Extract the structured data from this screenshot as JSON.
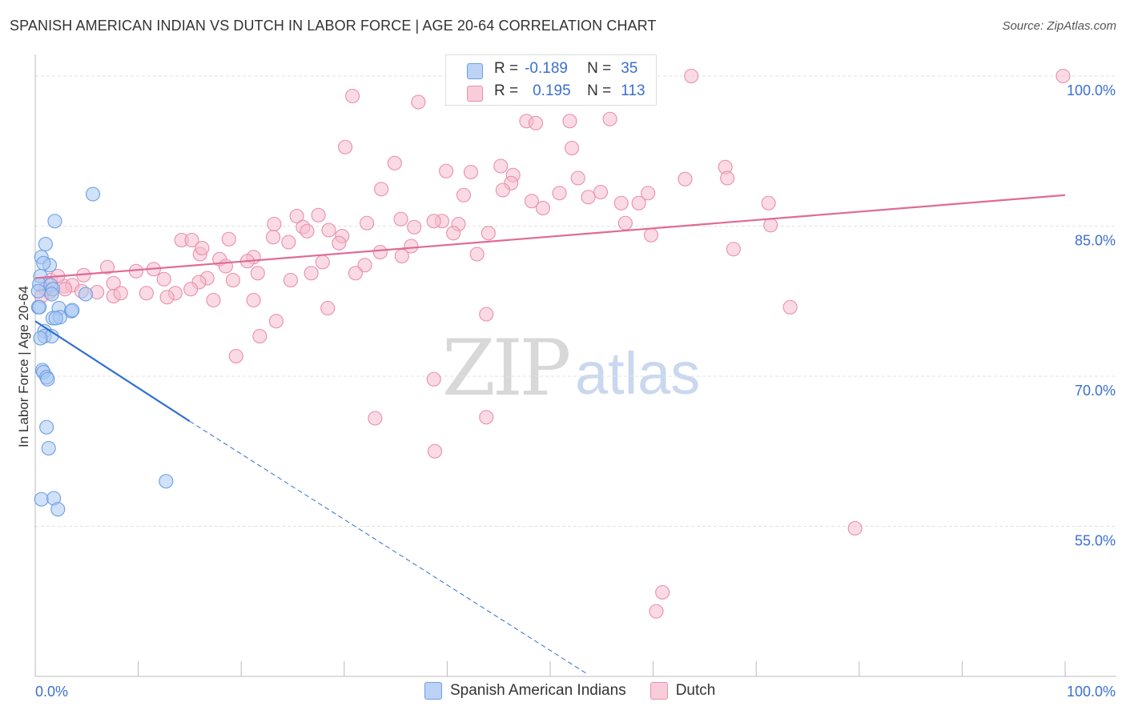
{
  "title": "SPANISH AMERICAN INDIAN VS DUTCH IN LABOR FORCE | AGE 20-64 CORRELATION CHART",
  "source": "Source: ZipAtlas.com",
  "watermark": {
    "zip": "ZIP",
    "atlas": "atlas"
  },
  "legend_top": {
    "rows": [
      {
        "r_label": "R =",
        "r_value": "-0.189",
        "n_label": "N =",
        "n_value": "35"
      },
      {
        "r_label": "R =",
        "r_value": "0.195",
        "n_label": "N =",
        "n_value": "113"
      }
    ]
  },
  "colors": {
    "blue_fill": "#a9c8f2",
    "blue_stroke": "#6a9ee4",
    "blue_line": "#2f6fd1",
    "pink_fill": "#f6bccd",
    "pink_stroke": "#e88faa",
    "pink_line": "#e06a96",
    "tick_label": "#3b6fd0",
    "grid": "#e2e2e2"
  },
  "chart_data": {
    "type": "scatter",
    "title": "SPANISH AMERICAN INDIAN VS DUTCH IN LABOR FORCE | AGE 20-64 CORRELATION CHART",
    "xlabel": "",
    "ylabel": "In Labor Force | Age 20-64",
    "xlim": [
      0,
      100
    ],
    "ylim": [
      40,
      102
    ],
    "x_tick_labels": [
      {
        "value": 0,
        "label": "0.0%"
      },
      {
        "value": 100,
        "label": "100.0%"
      }
    ],
    "y_ticks": [
      {
        "value": 100,
        "label": "100.0%"
      },
      {
        "value": 85,
        "label": "85.0%"
      },
      {
        "value": 70,
        "label": "70.0%"
      },
      {
        "value": 55,
        "label": "55.0%"
      }
    ],
    "legend": {
      "position": "bottom-center"
    },
    "series": [
      {
        "name": "Spanish American Indians",
        "color": "blue",
        "trend": {
          "x0": 0,
          "y0": 75.5,
          "x1": 15,
          "y1": 65.5,
          "dash_to_x": 53.5,
          "dash_to_y": 40.3
        },
        "points": [
          [
            5.6,
            88.2
          ],
          [
            1.9,
            85.5
          ],
          [
            1.0,
            83.2
          ],
          [
            0.6,
            81.9
          ],
          [
            1.4,
            81.1
          ],
          [
            0.8,
            81.3
          ],
          [
            0.5,
            80.0
          ],
          [
            0.4,
            79.2
          ],
          [
            1.5,
            79.1
          ],
          [
            0.3,
            78.5
          ],
          [
            1.7,
            78.7
          ],
          [
            4.9,
            78.2
          ],
          [
            2.3,
            76.8
          ],
          [
            0.3,
            76.9
          ],
          [
            3.5,
            76.5
          ],
          [
            3.6,
            76.6
          ],
          [
            1.7,
            75.8
          ],
          [
            2.4,
            75.9
          ],
          [
            2.0,
            75.8
          ],
          [
            0.9,
            74.5
          ],
          [
            0.9,
            74.0
          ],
          [
            1.6,
            74.0
          ],
          [
            0.5,
            73.8
          ],
          [
            0.7,
            70.6
          ],
          [
            0.8,
            70.4
          ],
          [
            1.1,
            69.9
          ],
          [
            1.2,
            69.7
          ],
          [
            1.1,
            64.9
          ],
          [
            1.3,
            62.8
          ],
          [
            12.7,
            59.5
          ],
          [
            0.6,
            57.7
          ],
          [
            1.8,
            57.8
          ],
          [
            2.2,
            56.7
          ],
          [
            0.4,
            76.9
          ],
          [
            1.6,
            78.2
          ]
        ]
      },
      {
        "name": "Dutch",
        "color": "pink",
        "trend": {
          "x0": 0,
          "y0": 79.8,
          "x1": 100,
          "y1": 88.1
        },
        "points": [
          [
            63.7,
            100.0
          ],
          [
            99.8,
            100.0
          ],
          [
            30.8,
            98.0
          ],
          [
            37.2,
            97.4
          ],
          [
            47.7,
            95.5
          ],
          [
            51.9,
            95.5
          ],
          [
            55.8,
            95.7
          ],
          [
            48.6,
            95.3
          ],
          [
            30.1,
            92.9
          ],
          [
            52.1,
            92.8
          ],
          [
            34.9,
            91.3
          ],
          [
            45.2,
            91.0
          ],
          [
            39.9,
            90.5
          ],
          [
            42.3,
            90.4
          ],
          [
            46.4,
            90.1
          ],
          [
            52.7,
            89.8
          ],
          [
            63.1,
            89.7
          ],
          [
            46.2,
            89.3
          ],
          [
            33.6,
            88.7
          ],
          [
            45.4,
            88.6
          ],
          [
            50.9,
            88.3
          ],
          [
            54.9,
            88.4
          ],
          [
            41.6,
            88.1
          ],
          [
            53.7,
            87.9
          ],
          [
            58.6,
            87.3
          ],
          [
            48.2,
            87.5
          ],
          [
            56.9,
            87.3
          ],
          [
            49.3,
            86.8
          ],
          [
            25.4,
            86.0
          ],
          [
            27.5,
            86.1
          ],
          [
            35.5,
            85.7
          ],
          [
            32.2,
            85.3
          ],
          [
            41.1,
            85.2
          ],
          [
            39.5,
            85.5
          ],
          [
            38.7,
            85.5
          ],
          [
            23.2,
            85.2
          ],
          [
            26.0,
            84.9
          ],
          [
            36.8,
            84.9
          ],
          [
            26.4,
            84.5
          ],
          [
            28.5,
            84.6
          ],
          [
            29.8,
            84.0
          ],
          [
            23.1,
            83.9
          ],
          [
            40.6,
            84.3
          ],
          [
            44.0,
            84.3
          ],
          [
            24.6,
            83.4
          ],
          [
            36.5,
            83.0
          ],
          [
            29.5,
            83.3
          ],
          [
            18.8,
            83.7
          ],
          [
            14.2,
            83.6
          ],
          [
            15.2,
            83.6
          ],
          [
            16.0,
            82.2
          ],
          [
            16.2,
            82.8
          ],
          [
            17.9,
            81.7
          ],
          [
            21.2,
            81.9
          ],
          [
            20.6,
            81.5
          ],
          [
            27.9,
            81.4
          ],
          [
            32.0,
            81.1
          ],
          [
            35.6,
            82.0
          ],
          [
            42.9,
            82.2
          ],
          [
            18.5,
            81.0
          ],
          [
            21.6,
            80.3
          ],
          [
            26.8,
            80.3
          ],
          [
            31.1,
            80.3
          ],
          [
            11.5,
            80.7
          ],
          [
            9.8,
            80.5
          ],
          [
            7.0,
            80.9
          ],
          [
            4.7,
            80.1
          ],
          [
            16.7,
            79.8
          ],
          [
            19.2,
            79.6
          ],
          [
            24.8,
            79.6
          ],
          [
            15.9,
            79.4
          ],
          [
            12.5,
            79.7
          ],
          [
            7.6,
            79.3
          ],
          [
            1.5,
            79.6
          ],
          [
            2.8,
            79.0
          ],
          [
            3.6,
            79.1
          ],
          [
            2.9,
            78.7
          ],
          [
            4.5,
            78.5
          ],
          [
            1.4,
            78.4
          ],
          [
            6.0,
            78.4
          ],
          [
            7.6,
            78.0
          ],
          [
            8.3,
            78.3
          ],
          [
            10.8,
            78.3
          ],
          [
            13.6,
            78.3
          ],
          [
            15.1,
            78.7
          ],
          [
            12.8,
            77.9
          ],
          [
            17.3,
            77.6
          ],
          [
            21.2,
            77.6
          ],
          [
            28.4,
            76.8
          ],
          [
            73.3,
            76.9
          ],
          [
            43.8,
            76.2
          ],
          [
            23.4,
            75.5
          ],
          [
            21.8,
            74.0
          ],
          [
            19.5,
            72.0
          ],
          [
            38.7,
            69.7
          ],
          [
            33.0,
            65.8
          ],
          [
            43.8,
            65.9
          ],
          [
            38.8,
            62.5
          ],
          [
            79.6,
            54.8
          ],
          [
            60.9,
            48.4
          ],
          [
            60.3,
            46.5
          ],
          [
            59.5,
            88.3
          ],
          [
            67.0,
            90.9
          ],
          [
            67.2,
            89.8
          ],
          [
            71.2,
            87.3
          ],
          [
            71.4,
            85.1
          ],
          [
            67.8,
            82.7
          ],
          [
            59.8,
            84.1
          ],
          [
            57.3,
            85.3
          ],
          [
            33.5,
            82.4
          ],
          [
            1.0,
            78.7
          ],
          [
            2.2,
            80.0
          ],
          [
            0.6,
            78.0
          ]
        ]
      }
    ]
  }
}
